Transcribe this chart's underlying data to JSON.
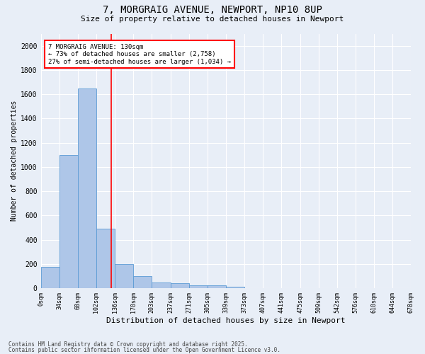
{
  "title": "7, MORGRAIG AVENUE, NEWPORT, NP10 8UP",
  "subtitle": "Size of property relative to detached houses in Newport",
  "xlabel": "Distribution of detached houses by size in Newport",
  "ylabel": "Number of detached properties",
  "bar_values": [
    175,
    1100,
    1650,
    490,
    200,
    100,
    45,
    40,
    25,
    25,
    15,
    0,
    0,
    0,
    0,
    0,
    0,
    0,
    0,
    0
  ],
  "bin_labels": [
    "0sqm",
    "34sqm",
    "68sqm",
    "102sqm",
    "136sqm",
    "170sqm",
    "203sqm",
    "237sqm",
    "271sqm",
    "305sqm",
    "339sqm",
    "373sqm",
    "407sqm",
    "441sqm",
    "475sqm",
    "509sqm",
    "542sqm",
    "576sqm",
    "610sqm",
    "644sqm",
    "678sqm"
  ],
  "bar_color": "#aec6e8",
  "bar_edge_color": "#5b9bd5",
  "red_line_x": 3.82,
  "annotation_text": "7 MORGRAIG AVENUE: 130sqm\n← 73% of detached houses are smaller (2,758)\n27% of semi-detached houses are larger (1,034) →",
  "annotation_box_color": "white",
  "annotation_box_edge_color": "red",
  "ylim": [
    0,
    2100
  ],
  "yticks": [
    0,
    200,
    400,
    600,
    800,
    1000,
    1200,
    1400,
    1600,
    1800,
    2000
  ],
  "background_color": "#e8eef7",
  "grid_color": "white",
  "footer1": "Contains HM Land Registry data © Crown copyright and database right 2025.",
  "footer2": "Contains public sector information licensed under the Open Government Licence v3.0."
}
